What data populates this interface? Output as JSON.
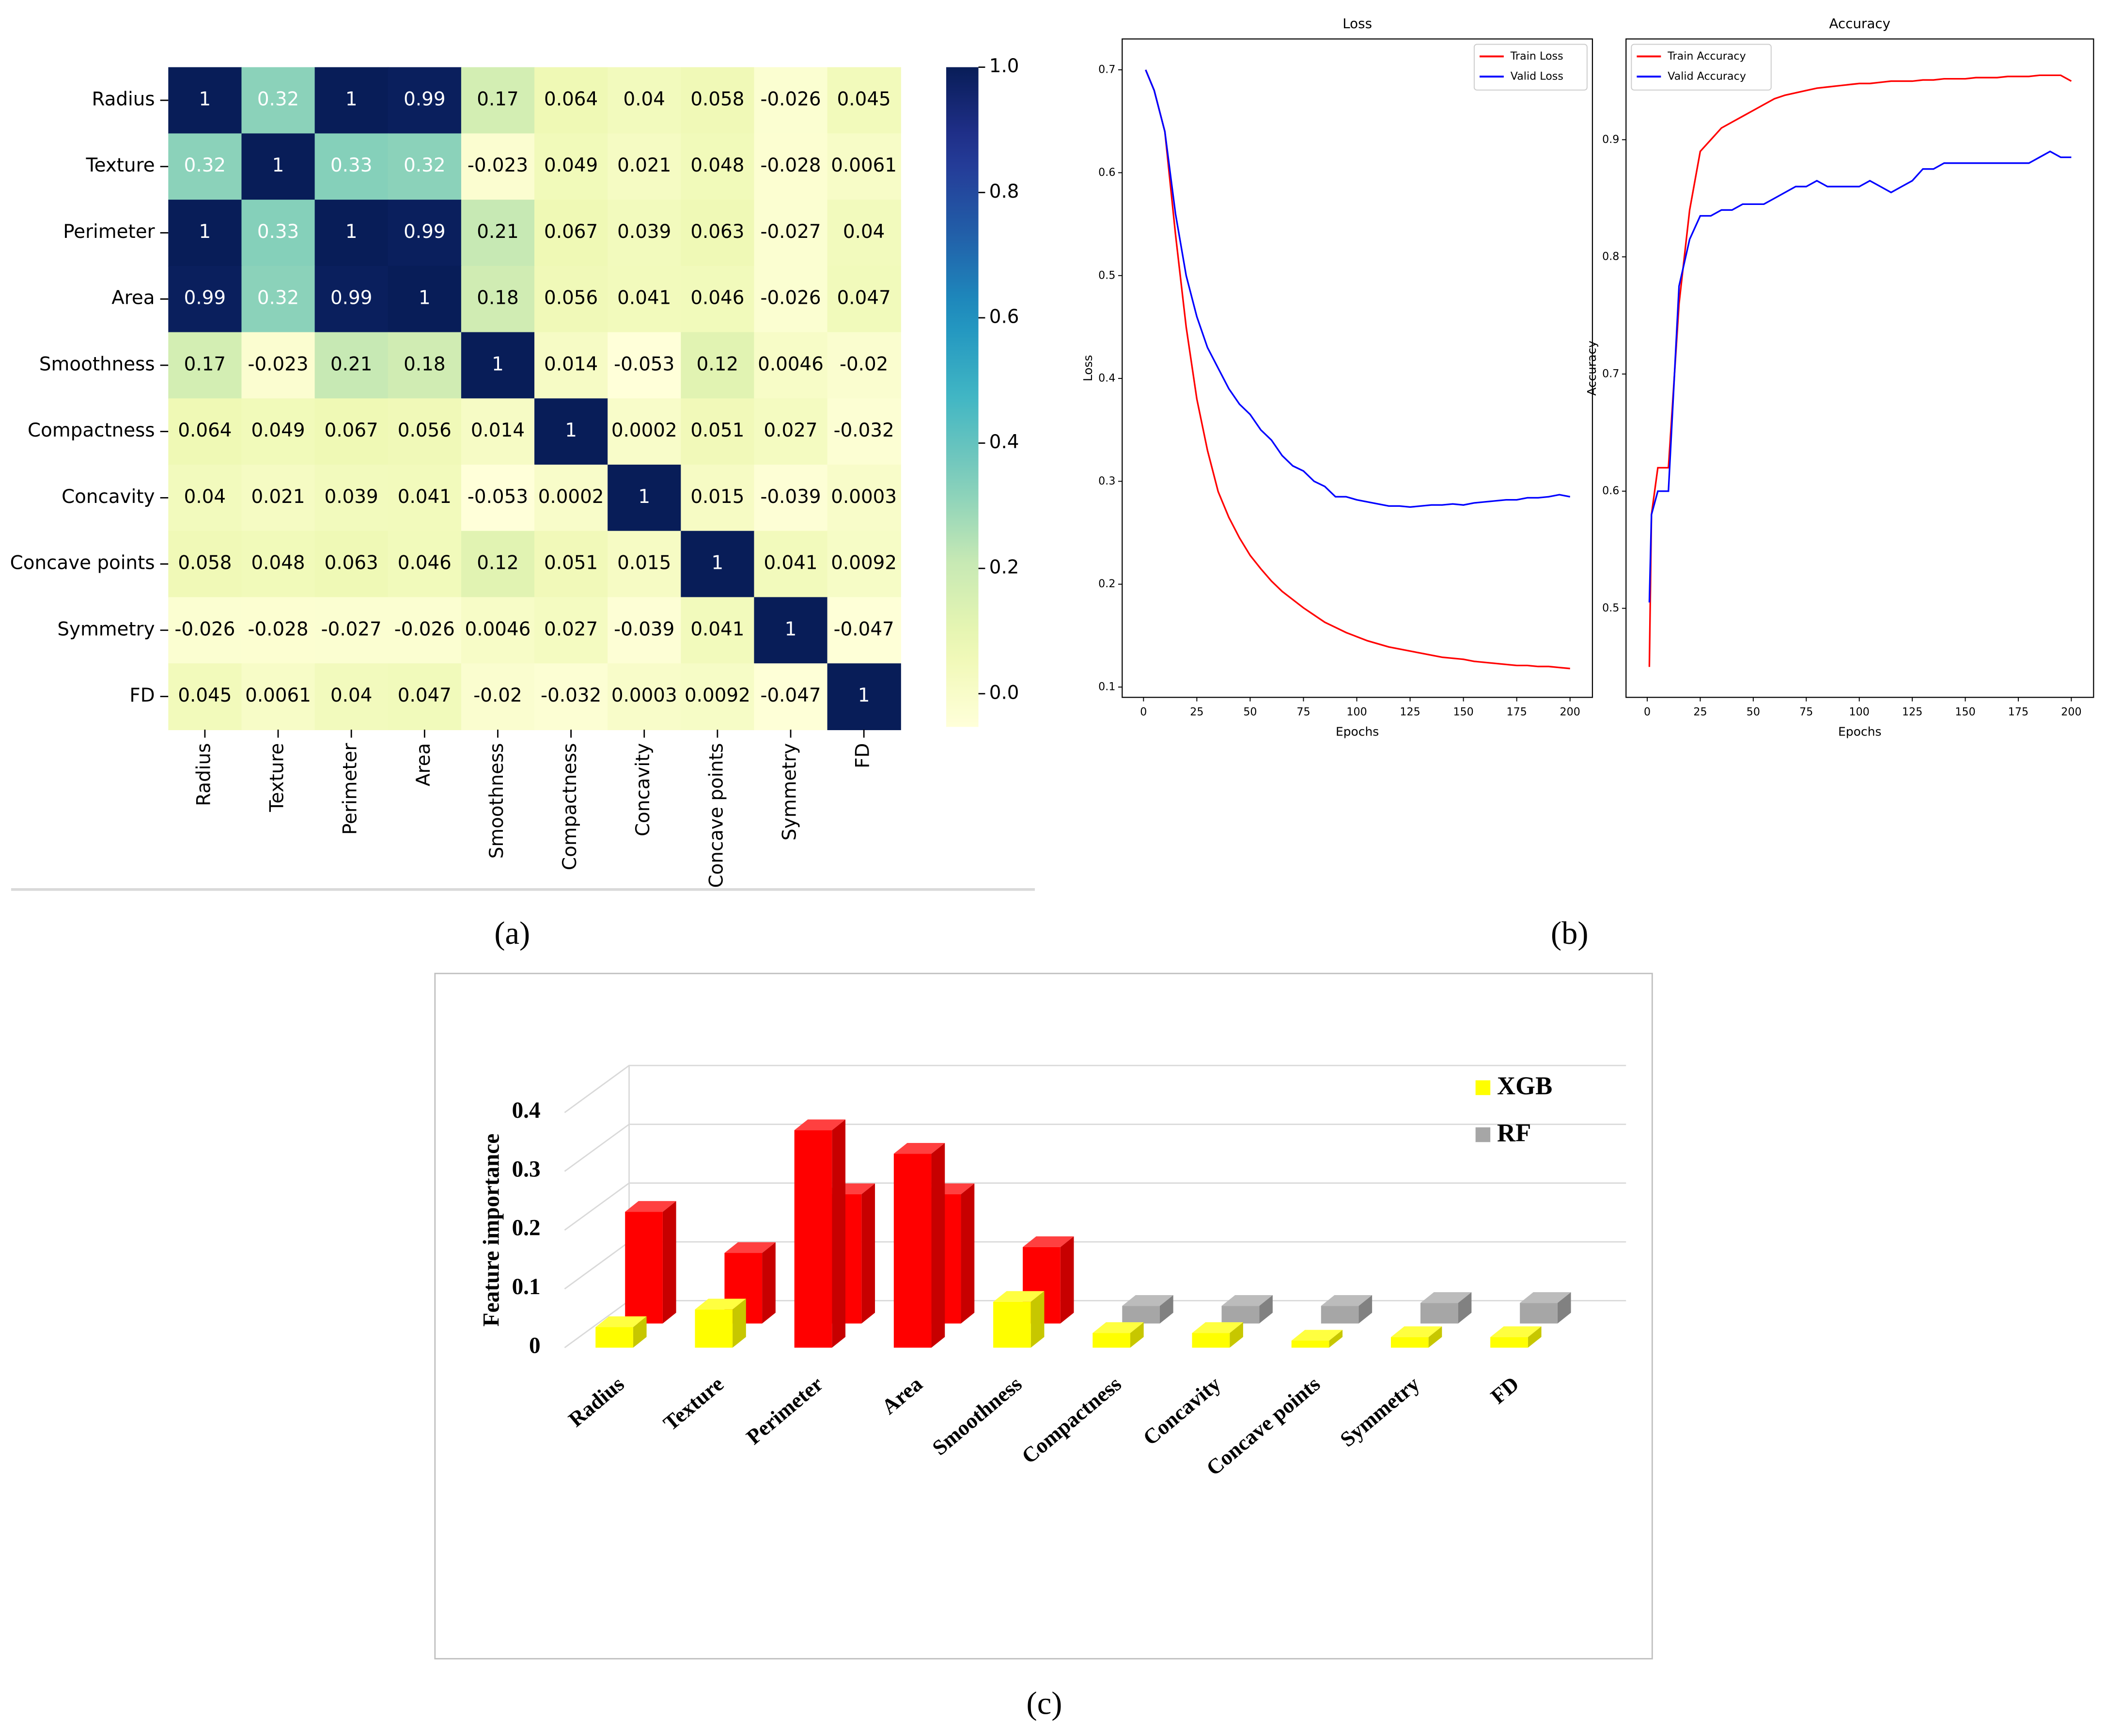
{
  "panel_labels": [
    "(a)",
    "(b)",
    "(c)"
  ],
  "chart_data": [
    {
      "type": "heatmap",
      "categories": [
        "Radius",
        "Texture",
        "Perimeter",
        "Area",
        "Smoothness",
        "Compactness",
        "Concavity",
        "Concave points",
        "Symmetry",
        "FD"
      ],
      "values": [
        [
          1,
          0.32,
          1,
          0.99,
          0.17,
          0.064,
          0.04,
          0.058,
          -0.026,
          0.045
        ],
        [
          0.32,
          1,
          0.33,
          0.32,
          -0.023,
          0.049,
          0.021,
          0.048,
          -0.028,
          0.0061
        ],
        [
          1,
          0.33,
          1,
          0.99,
          0.21,
          0.067,
          0.039,
          0.063,
          -0.027,
          0.04
        ],
        [
          0.99,
          0.32,
          0.99,
          1,
          0.18,
          0.056,
          0.041,
          0.046,
          -0.026,
          0.047
        ],
        [
          0.17,
          -0.023,
          0.21,
          0.18,
          1,
          0.014,
          -0.053,
          0.12,
          0.0046,
          -0.02
        ],
        [
          0.064,
          0.049,
          0.067,
          0.056,
          0.014,
          1,
          0.0002,
          0.051,
          0.027,
          -0.032
        ],
        [
          0.04,
          0.021,
          0.039,
          0.041,
          -0.053,
          0.0002,
          1,
          0.015,
          -0.039,
          0.0003
        ],
        [
          0.058,
          0.048,
          0.063,
          0.046,
          0.12,
          0.051,
          0.015,
          1,
          0.041,
          0.0092
        ],
        [
          -0.026,
          -0.028,
          -0.027,
          -0.026,
          0.0046,
          0.027,
          -0.039,
          0.041,
          1,
          -0.047
        ],
        [
          0.045,
          0.0061,
          0.04,
          0.047,
          -0.02,
          -0.032,
          0.0003,
          0.0092,
          -0.047,
          1
        ]
      ],
      "colormap": "YlGnBu",
      "zlim": [
        -0.053,
        1
      ],
      "zticks": [
        {
          "value": 0,
          "label": "0.0"
        },
        0.2,
        0.4,
        0.6,
        0.8,
        {
          "value": 1,
          "label": "1.0"
        }
      ]
    },
    {
      "type": "line",
      "title": "Loss",
      "x_label": "Epochs",
      "y_label": "Loss",
      "x": [
        1,
        5,
        10,
        15,
        20,
        25,
        30,
        35,
        40,
        45,
        50,
        55,
        60,
        65,
        70,
        75,
        80,
        85,
        90,
        95,
        100,
        105,
        110,
        115,
        120,
        125,
        130,
        135,
        140,
        145,
        150,
        155,
        160,
        165,
        170,
        175,
        180,
        185,
        190,
        195,
        200
      ],
      "series": [
        {
          "name": "Train Loss",
          "color": "#ff0000",
          "values": [
            0.7,
            0.68,
            0.64,
            0.54,
            0.45,
            0.38,
            0.33,
            0.29,
            0.265,
            0.245,
            0.228,
            0.215,
            0.203,
            0.193,
            0.185,
            0.177,
            0.17,
            0.163,
            0.158,
            0.153,
            0.149,
            0.145,
            0.142,
            0.139,
            0.137,
            0.135,
            0.133,
            0.131,
            0.129,
            0.128,
            0.127,
            0.125,
            0.124,
            0.123,
            0.122,
            0.121,
            0.121,
            0.12,
            0.12,
            0.119,
            0.118
          ]
        },
        {
          "name": "Valid Loss",
          "color": "#0000ff",
          "values": [
            0.7,
            0.68,
            0.64,
            0.56,
            0.5,
            0.46,
            0.43,
            0.41,
            0.39,
            0.375,
            0.365,
            0.35,
            0.34,
            0.325,
            0.315,
            0.31,
            0.3,
            0.295,
            0.285,
            0.285,
            0.282,
            0.28,
            0.278,
            0.276,
            0.276,
            0.275,
            0.276,
            0.277,
            0.277,
            0.278,
            0.277,
            0.279,
            0.28,
            0.281,
            0.282,
            0.282,
            0.284,
            0.284,
            0.285,
            0.287,
            0.285
          ]
        }
      ],
      "xlim": [
        -10,
        210.5
      ],
      "xticks": [
        0,
        25,
        50,
        75,
        100,
        125,
        150,
        175,
        200
      ],
      "ylim": [
        0.09,
        0.73
      ],
      "yticks": [
        0.1,
        0.2,
        0.3,
        0.4,
        0.5,
        0.6,
        0.7
      ],
      "legend": "upper right"
    },
    {
      "type": "line",
      "title": "Accuracy",
      "x_label": "Epochs",
      "y_label": "Accuracy",
      "x": [
        1,
        2,
        5,
        10,
        15,
        20,
        25,
        30,
        35,
        40,
        45,
        50,
        55,
        60,
        65,
        70,
        75,
        80,
        85,
        90,
        95,
        100,
        105,
        110,
        115,
        120,
        125,
        130,
        135,
        140,
        145,
        150,
        155,
        160,
        165,
        170,
        175,
        180,
        185,
        190,
        195,
        200
      ],
      "series": [
        {
          "name": "Train Accuracy",
          "color": "#ff0000",
          "values": [
            0.45,
            0.58,
            0.62,
            0.62,
            0.76,
            0.84,
            0.89,
            0.9,
            0.91,
            0.915,
            0.92,
            0.925,
            0.93,
            0.935,
            0.938,
            0.94,
            0.942,
            0.944,
            0.945,
            0.946,
            0.947,
            0.948,
            0.948,
            0.949,
            0.95,
            0.95,
            0.95,
            0.951,
            0.951,
            0.952,
            0.952,
            0.952,
            0.953,
            0.953,
            0.953,
            0.954,
            0.954,
            0.954,
            0.955,
            0.955,
            0.955,
            0.95
          ]
        },
        {
          "name": "Valid Accuracy",
          "color": "#0000ff",
          "values": [
            0.505,
            0.58,
            0.6,
            0.6,
            0.775,
            0.815,
            0.835,
            0.835,
            0.84,
            0.84,
            0.845,
            0.845,
            0.845,
            0.85,
            0.855,
            0.86,
            0.86,
            0.865,
            0.86,
            0.86,
            0.86,
            0.86,
            0.865,
            0.86,
            0.855,
            0.86,
            0.865,
            0.875,
            0.875,
            0.88,
            0.88,
            0.88,
            0.88,
            0.88,
            0.88,
            0.88,
            0.88,
            0.88,
            0.885,
            0.89,
            0.885,
            0.885
          ]
        }
      ],
      "xlim": [
        -10,
        210.5
      ],
      "xticks": [
        0,
        25,
        50,
        75,
        100,
        125,
        150,
        175,
        200
      ],
      "ylim": [
        0.424,
        0.986
      ],
      "yticks": [
        0.5,
        0.6,
        0.7,
        0.8,
        0.9
      ],
      "legend": "upper left"
    },
    {
      "type": "bar3d",
      "y_label": "Feature importance",
      "categories": [
        "Radius",
        "Texture",
        "Perimeter",
        "Area",
        "Smoothness",
        "Compactness",
        "Concavity",
        "Concave points",
        "Symmetry",
        "FD"
      ],
      "series": [
        {
          "name": "XGB",
          "color": "#ffff00",
          "values": [
            0.035,
            0.065,
            0.37,
            0.33,
            0.078,
            0.025,
            0.025,
            0.012,
            0.018,
            0.018
          ],
          "colors": [
            "#ffff00",
            "#ffff00",
            "#ff0000",
            "#ff0000",
            "#ffff00",
            "#ffff00",
            "#ffff00",
            "#ffff00",
            "#ffff00",
            "#ffff00"
          ]
        },
        {
          "name": "RF",
          "color": "#a6a6a6",
          "values": [
            0.19,
            0.12,
            0.22,
            0.22,
            0.13,
            0.03,
            0.03,
            0.03,
            0.035,
            0.035
          ],
          "colors": [
            "#ff0000",
            "#ff0000",
            "#ff0000",
            "#ff0000",
            "#ff0000",
            "#a6a6a6",
            "#a6a6a6",
            "#a6a6a6",
            "#a6a6a6",
            "#a6a6a6"
          ]
        }
      ],
      "ylim": [
        0,
        0.4
      ],
      "yticks": [
        0,
        0.1,
        0.2,
        0.3,
        0.4
      ],
      "legend": "upper right"
    }
  ]
}
